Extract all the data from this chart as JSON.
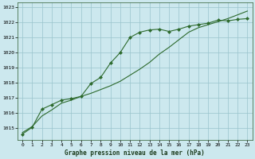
{
  "title": "Graphe pression niveau de la mer (hPa)",
  "background_color": "#cce8ee",
  "grid_color": "#99c4cc",
  "line_color": "#2d6a2d",
  "marker_color": "#2d6a2d",
  "xlim": [
    -0.5,
    23.5
  ],
  "ylim": [
    1014.2,
    1023.3
  ],
  "yticks": [
    1015,
    1016,
    1017,
    1018,
    1019,
    1020,
    1021,
    1022,
    1023
  ],
  "xticks": [
    0,
    1,
    2,
    3,
    4,
    5,
    6,
    7,
    8,
    9,
    10,
    11,
    12,
    13,
    14,
    15,
    16,
    17,
    18,
    19,
    20,
    21,
    22,
    23
  ],
  "series1_x": [
    0,
    1,
    2,
    3,
    4,
    5,
    6,
    7,
    8,
    9,
    10,
    11,
    12,
    13,
    14,
    15,
    16,
    17,
    18,
    19,
    20,
    21,
    22,
    23
  ],
  "series1_y": [
    1014.7,
    1015.1,
    1015.8,
    1016.2,
    1016.65,
    1016.85,
    1017.1,
    1017.3,
    1017.55,
    1017.8,
    1018.1,
    1018.5,
    1018.9,
    1019.35,
    1019.9,
    1020.35,
    1020.85,
    1021.35,
    1021.65,
    1021.85,
    1022.05,
    1022.25,
    1022.5,
    1022.75
  ],
  "series2_x": [
    0,
    1,
    2,
    3,
    4,
    5,
    6,
    7,
    8,
    9,
    10,
    11,
    12,
    13,
    14,
    15,
    16,
    17,
    18,
    19,
    20,
    21,
    22,
    23
  ],
  "series2_y": [
    1014.6,
    1015.05,
    1016.25,
    1016.55,
    1016.85,
    1016.95,
    1017.1,
    1017.95,
    1018.35,
    1019.3,
    1020.0,
    1021.0,
    1021.35,
    1021.5,
    1021.55,
    1021.4,
    1021.55,
    1021.75,
    1021.85,
    1021.95,
    1022.15,
    1022.1,
    1022.2,
    1022.25
  ]
}
